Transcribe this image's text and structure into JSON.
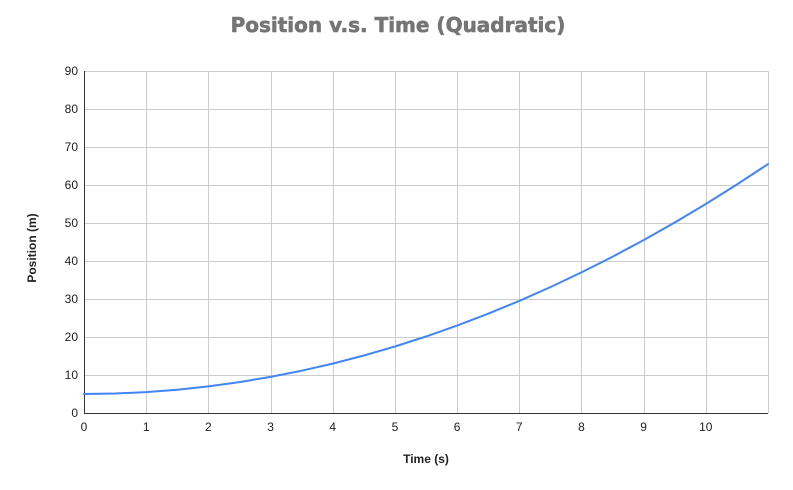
{
  "chart_data": {
    "type": "line",
    "title": "Position v.s. Time (Quadratic)",
    "xlabel": "Time (s)",
    "ylabel": "Position (m)",
    "xlim": [
      0,
      11
    ],
    "ylim": [
      0,
      90
    ],
    "x_ticks": [
      0,
      1,
      2,
      3,
      4,
      5,
      6,
      7,
      8,
      9,
      10
    ],
    "y_ticks": [
      0,
      10,
      20,
      30,
      40,
      50,
      60,
      70,
      80,
      90
    ],
    "grid": true,
    "legend": "none",
    "series": [
      {
        "color": "#4285f4",
        "x": [
          0,
          0.5,
          1,
          1.5,
          2,
          2.5,
          3,
          3.5,
          4,
          4.5,
          5,
          5.5,
          6,
          6.5,
          7,
          7.5,
          8,
          8.5,
          9,
          9.5,
          10,
          10.5,
          11
        ],
        "values": [
          5,
          5.13,
          5.5,
          6.13,
          7,
          8.13,
          9.5,
          11.13,
          13,
          15.13,
          17.5,
          20.13,
          23,
          26.13,
          29.5,
          33.13,
          37,
          41.13,
          45.5,
          50.13,
          55,
          60.13,
          65.5
        ]
      }
    ]
  }
}
